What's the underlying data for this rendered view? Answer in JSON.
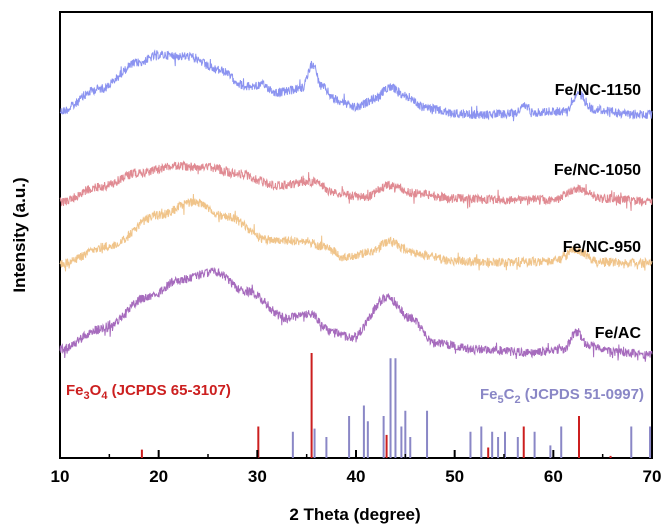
{
  "chart_data": {
    "type": "line",
    "title": "",
    "xlabel": "2 Theta (degree)",
    "ylabel": "Intensity (a.u.)",
    "xlim": [
      10,
      70
    ],
    "xticks": [
      "10",
      "20",
      "30",
      "40",
      "50",
      "60",
      "70"
    ],
    "yticks": "none",
    "grid": false,
    "series": [
      {
        "name": "Fe/NC-1150",
        "color": "#8b93f0",
        "points": [
          [
            10,
            0.05
          ],
          [
            14,
            0.35
          ],
          [
            18,
            0.7
          ],
          [
            20,
            0.8
          ],
          [
            23,
            0.78
          ],
          [
            26,
            0.6
          ],
          [
            29,
            0.38
          ],
          [
            30.5,
            0.4
          ],
          [
            32,
            0.3
          ],
          [
            34.5,
            0.35
          ],
          [
            35.6,
            0.68
          ],
          [
            36.5,
            0.38
          ],
          [
            38,
            0.2
          ],
          [
            40,
            0.1
          ],
          [
            42,
            0.22
          ],
          [
            43.4,
            0.38
          ],
          [
            45,
            0.25
          ],
          [
            47,
            0.1
          ],
          [
            50,
            0.02
          ],
          [
            53,
            0.0
          ],
          [
            56,
            0.02
          ],
          [
            57.2,
            0.12
          ],
          [
            58,
            0.04
          ],
          [
            61,
            0.05
          ],
          [
            62.6,
            0.28
          ],
          [
            64,
            0.08
          ],
          [
            67,
            0.02
          ],
          [
            70,
            0.0
          ]
        ]
      },
      {
        "name": "Fe/NC-1050",
        "color": "#e08a92",
        "points": [
          [
            10,
            0.05
          ],
          [
            14,
            0.28
          ],
          [
            18,
            0.5
          ],
          [
            22,
            0.6
          ],
          [
            25,
            0.58
          ],
          [
            28,
            0.48
          ],
          [
            32,
            0.3
          ],
          [
            35.5,
            0.36
          ],
          [
            38,
            0.18
          ],
          [
            41,
            0.12
          ],
          [
            43.2,
            0.3
          ],
          [
            46,
            0.18
          ],
          [
            50,
            0.1
          ],
          [
            55,
            0.08
          ],
          [
            60,
            0.08
          ],
          [
            62.5,
            0.25
          ],
          [
            65,
            0.1
          ],
          [
            70,
            0.05
          ]
        ]
      },
      {
        "name": "Fe/NC-950",
        "color": "#f0c48a",
        "points": [
          [
            10,
            0.05
          ],
          [
            15,
            0.25
          ],
          [
            20,
            0.6
          ],
          [
            23.5,
            0.75
          ],
          [
            27,
            0.58
          ],
          [
            31,
            0.32
          ],
          [
            35,
            0.3
          ],
          [
            36.5,
            0.25
          ],
          [
            39,
            0.12
          ],
          [
            41.5,
            0.18
          ],
          [
            43.3,
            0.3
          ],
          [
            46,
            0.16
          ],
          [
            50,
            0.08
          ],
          [
            55,
            0.06
          ],
          [
            60,
            0.08
          ],
          [
            62.4,
            0.2
          ],
          [
            64.5,
            0.07
          ],
          [
            70,
            0.05
          ]
        ]
      },
      {
        "name": "Fe/AC",
        "color": "#a66bbd",
        "points": [
          [
            10,
            0.05
          ],
          [
            14,
            0.22
          ],
          [
            19,
            0.5
          ],
          [
            22,
            0.65
          ],
          [
            25.5,
            0.72
          ],
          [
            29,
            0.55
          ],
          [
            33,
            0.32
          ],
          [
            35.3,
            0.36
          ],
          [
            37.5,
            0.2
          ],
          [
            39.5,
            0.15
          ],
          [
            43.2,
            0.5
          ],
          [
            45.5,
            0.32
          ],
          [
            48,
            0.1
          ],
          [
            52,
            0.05
          ],
          [
            58,
            0.02
          ],
          [
            61,
            0.05
          ],
          [
            62.4,
            0.2
          ],
          [
            63.5,
            0.08
          ],
          [
            67,
            0.02
          ],
          [
            70,
            0.0
          ]
        ]
      }
    ],
    "reference_patterns": [
      {
        "name": "Fe3O4 (JCPDS 65-3107)",
        "color": "#cc1f1f",
        "peaks": [
          [
            18.3,
            0.08
          ],
          [
            30.1,
            0.3
          ],
          [
            35.5,
            1.0
          ],
          [
            43.1,
            0.22
          ],
          [
            53.4,
            0.1
          ],
          [
            57.0,
            0.3
          ],
          [
            62.6,
            0.4
          ],
          [
            65.8,
            0.02
          ]
        ]
      },
      {
        "name": "Fe5C2 (JCPDS 51-0997)",
        "color": "#8a87c6",
        "peaks": [
          [
            33.6,
            0.25
          ],
          [
            35.8,
            0.28
          ],
          [
            37.0,
            0.2
          ],
          [
            39.3,
            0.4
          ],
          [
            40.8,
            0.5
          ],
          [
            41.2,
            0.35
          ],
          [
            42.8,
            0.4
          ],
          [
            43.5,
            0.95
          ],
          [
            44.0,
            0.95
          ],
          [
            44.6,
            0.3
          ],
          [
            45.0,
            0.45
          ],
          [
            45.5,
            0.2
          ],
          [
            47.2,
            0.45
          ],
          [
            51.6,
            0.25
          ],
          [
            52.7,
            0.3
          ],
          [
            53.8,
            0.25
          ],
          [
            54.4,
            0.2
          ],
          [
            55.1,
            0.25
          ],
          [
            56.4,
            0.2
          ],
          [
            58.1,
            0.25
          ],
          [
            59.7,
            0.12
          ],
          [
            60.8,
            0.3
          ],
          [
            67.9,
            0.3
          ],
          [
            69.8,
            0.3
          ]
        ]
      }
    ],
    "labels": {
      "series_1150": "Fe/NC-1150",
      "series_1050": "Fe/NC-1050",
      "series_950": "Fe/NC-950",
      "series_ac": "Fe/AC",
      "ref_fe3o4_main": "Fe",
      "ref_fe3o4_sub1": "3",
      "ref_fe3o4_o": "O",
      "ref_fe3o4_sub2": "4",
      "ref_fe3o4_jcpds": " (JCPDS 65-3107)",
      "ref_fe5c2_main": "Fe",
      "ref_fe5c2_sub1": "5",
      "ref_fe5c2_c": "C",
      "ref_fe5c2_sub2": "2",
      "ref_fe5c2_jcpds": " (JCPDS 51-0997)"
    }
  }
}
